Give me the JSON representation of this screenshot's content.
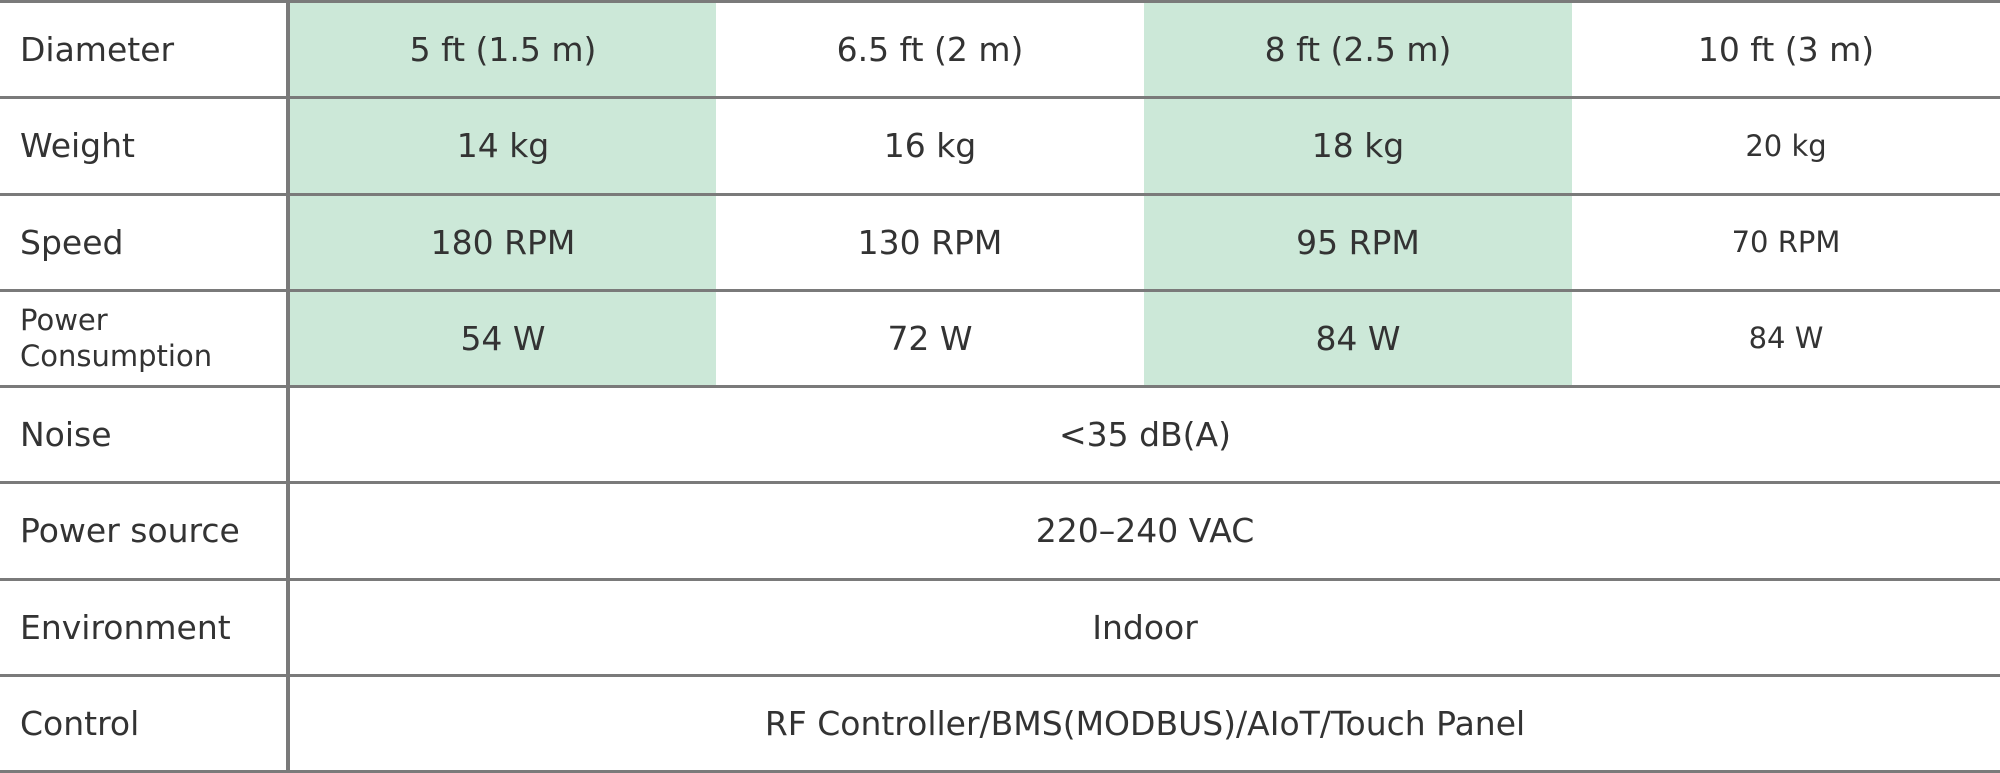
{
  "table": {
    "rows": [
      {
        "label": "Diameter",
        "cells": [
          "5 ft (1.5 m)",
          "6.5 ft (2 m)",
          "8 ft (2.5 m)",
          "10 ft (3 m)"
        ]
      },
      {
        "label": "Weight",
        "cells": [
          "14 kg",
          "16 kg",
          "18 kg",
          "20 kg"
        ]
      },
      {
        "label": "Speed",
        "cells": [
          "180 RPM",
          "130 RPM",
          "95 RPM",
          "70 RPM"
        ]
      },
      {
        "label": "Power Consumption",
        "cells": [
          "54 W",
          "72 W",
          "84 W",
          "84 W"
        ]
      },
      {
        "label": "Noise",
        "cells": [
          "<35 dB(A)"
        ]
      },
      {
        "label": "Power source",
        "cells": [
          "220–240 VAC"
        ]
      },
      {
        "label": "Environment",
        "cells": [
          "Indoor"
        ]
      },
      {
        "label": "Control",
        "cells": [
          "RF Controller/BMS(MODBUS)/AIoT/Touch Panel"
        ]
      }
    ]
  }
}
